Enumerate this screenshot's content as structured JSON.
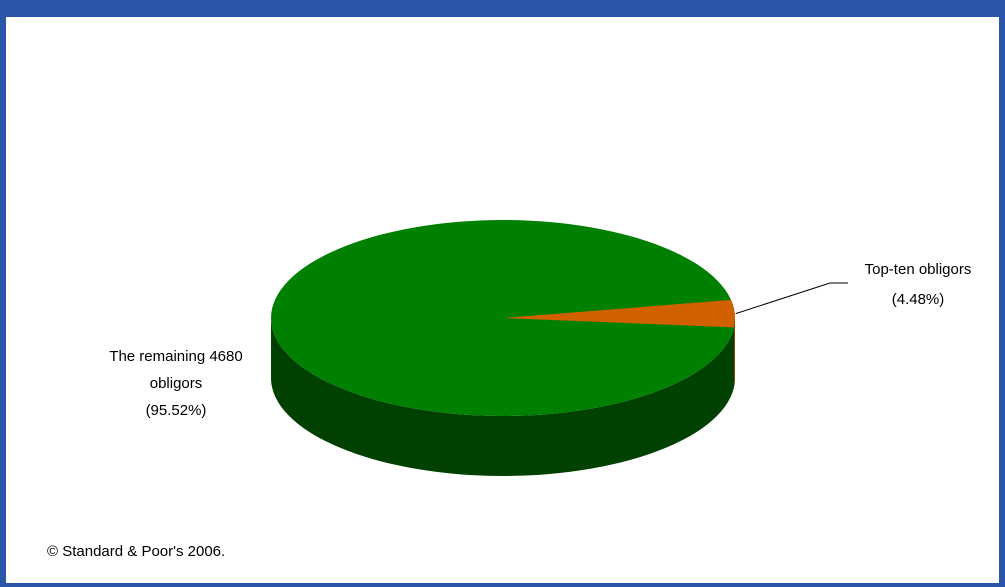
{
  "chart_data": {
    "type": "pie",
    "title": "",
    "slices": [
      {
        "label_lines": [
          "The remaining 4680",
          "obligors",
          "(95.52%)"
        ],
        "value": 95.52,
        "color": "#008000",
        "side_color": "#004000"
      },
      {
        "label_lines": [
          "Top-ten obligors",
          "(4.48%)"
        ],
        "value": 4.48,
        "color": "#d06000",
        "side_color": "#804000"
      }
    ],
    "legend": "none",
    "style": "3d"
  },
  "footer": {
    "copyright": "© Standard & Poor's 2006."
  }
}
